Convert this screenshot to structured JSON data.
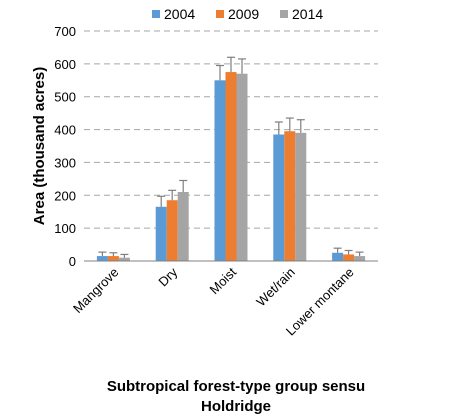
{
  "chart_data": {
    "type": "bar",
    "categories": [
      "Mangrove",
      "Dry",
      "Moist",
      "Wet/rain",
      "Lower montane"
    ],
    "series": [
      {
        "name": "2004",
        "color": "#5b9bd5",
        "values": [
          15,
          165,
          550,
          385,
          25
        ],
        "errors": [
          12,
          32,
          45,
          38,
          14
        ]
      },
      {
        "name": "2009",
        "color": "#ed7d31",
        "values": [
          15,
          185,
          575,
          395,
          20
        ],
        "errors": [
          10,
          30,
          45,
          40,
          12
        ]
      },
      {
        "name": "2014",
        "color": "#a5a5a5",
        "values": [
          10,
          210,
          570,
          390,
          15
        ],
        "errors": [
          10,
          35,
          45,
          40,
          12
        ]
      }
    ],
    "ylim": [
      0,
      700
    ],
    "yticks": [
      0,
      100,
      200,
      300,
      400,
      500,
      600,
      700
    ],
    "ylabel": "Area (thousand acres)",
    "xlabel_line1": "Subtropical forest-type group sensu",
    "xlabel_line2": "Holdridge",
    "grid": true,
    "legend_position": "top"
  }
}
